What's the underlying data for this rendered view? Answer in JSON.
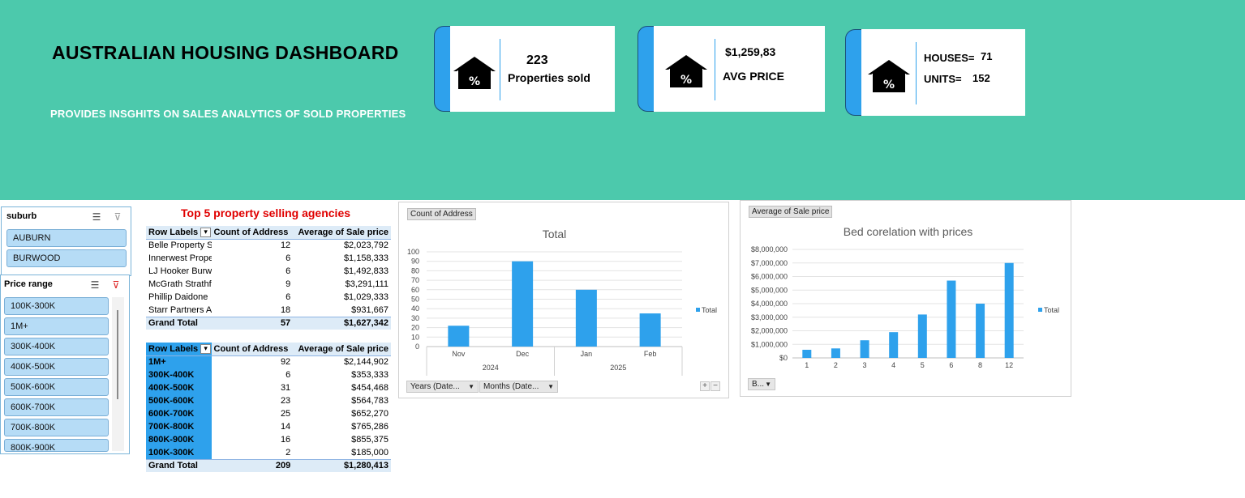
{
  "header": {
    "title": "AUSTRALIAN HOUSING DASHBOARD",
    "subtitle": "PROVIDES INSGHITS ON SALES ANALYTICS OF SOLD PROPERTIES"
  },
  "kpis": {
    "sold": {
      "value": "223",
      "label": "Properties sold",
      "icon": "house-percent-icon"
    },
    "avg": {
      "value": "$1,259,83",
      "label": "AVG PRICE",
      "icon": "house-percent-icon"
    },
    "types": {
      "houses_label": "HOUSES=",
      "houses_value": "71",
      "units_label": "UNITS=",
      "units_value": "152",
      "icon": "house-percent-icon"
    }
  },
  "colors": {
    "banner": "#4cc9ac",
    "accent": "#2ea1ec",
    "title_red": "#e00000",
    "slicer_button": "#b6dcf6"
  },
  "slicers": {
    "suburb": {
      "title": "suburb",
      "items": [
        "AUBURN",
        "BURWOOD"
      ]
    },
    "price_range": {
      "title": "Price range",
      "items": [
        "100K-300K",
        "1M+",
        "300K-400K",
        "400K-500K",
        "500K-600K",
        "600K-700K",
        "700K-800K",
        "800K-900K"
      ]
    }
  },
  "pivot_agencies": {
    "title": "Top 5 property selling agencies",
    "headers": [
      "Row Labels",
      "Count of Address",
      "Average of Sale price"
    ],
    "rows": [
      [
        "Belle Property S",
        "12",
        "$2,023,792"
      ],
      [
        "Innerwest Prope",
        "6",
        "$1,158,333"
      ],
      [
        "LJ Hooker Burwc",
        "6",
        "$1,492,833"
      ],
      [
        "McGrath Strathfi",
        "9",
        "$3,291,111"
      ],
      [
        "Phillip Daidone",
        "6",
        "$1,029,333"
      ],
      [
        "Starr Partners Au",
        "18",
        "$931,667"
      ]
    ],
    "total": [
      "Grand Total",
      "57",
      "$1,627,342"
    ]
  },
  "pivot_price": {
    "headers": [
      "Row Labels",
      "Count of Address",
      "Average of Sale price"
    ],
    "rows": [
      [
        "1M+",
        "92",
        "$2,144,902"
      ],
      [
        "300K-400K",
        "6",
        "$353,333"
      ],
      [
        "400K-500K",
        "31",
        "$454,468"
      ],
      [
        "500K-600K",
        "23",
        "$564,783"
      ],
      [
        "600K-700K",
        "25",
        "$652,270"
      ],
      [
        "700K-800K",
        "14",
        "$765,286"
      ],
      [
        "800K-900K",
        "16",
        "$855,375"
      ],
      [
        "100K-300K",
        "2",
        "$185,000"
      ]
    ],
    "total": [
      "Grand Total",
      "209",
      "$1,280,413"
    ]
  },
  "chart1_ui": {
    "field_button": "Count of Address",
    "dropdown1": "Years (Date...",
    "dropdown2": "Months (Date...",
    "plus": "+",
    "minus": "−"
  },
  "chart2_ui": {
    "field_button": "Average of Sale price",
    "dropdown1": "B..."
  },
  "chart_data": [
    {
      "type": "bar",
      "title": "Total",
      "categories": [
        "Nov",
        "Dec",
        "Jan",
        "Feb"
      ],
      "groups": [
        {
          "label": "2024",
          "span": 2
        },
        {
          "label": "2025",
          "span": 2
        }
      ],
      "series": [
        {
          "name": "Total",
          "values": [
            22,
            90,
            60,
            35
          ]
        }
      ],
      "ylim": [
        0,
        100
      ],
      "yticks": [
        "0",
        "10",
        "20",
        "30",
        "40",
        "50",
        "60",
        "70",
        "80",
        "90",
        "100"
      ],
      "legend": "right",
      "grid": true
    },
    {
      "type": "bar",
      "title": "Bed corelation with prices",
      "categories": [
        "1",
        "2",
        "3",
        "4",
        "5",
        "6",
        "8",
        "12"
      ],
      "series": [
        {
          "name": "Total",
          "values": [
            600000,
            700000,
            1300000,
            1900000,
            3200000,
            5700000,
            4000000,
            7000000
          ]
        }
      ],
      "ylim": [
        0,
        8000000
      ],
      "yticks": [
        "$0",
        "$1,000,000",
        "$2,000,000",
        "$3,000,000",
        "$4,000,000",
        "$5,000,000",
        "$6,000,000",
        "$7,000,000",
        "$8,000,000"
      ],
      "legend": "right",
      "grid": true
    }
  ]
}
